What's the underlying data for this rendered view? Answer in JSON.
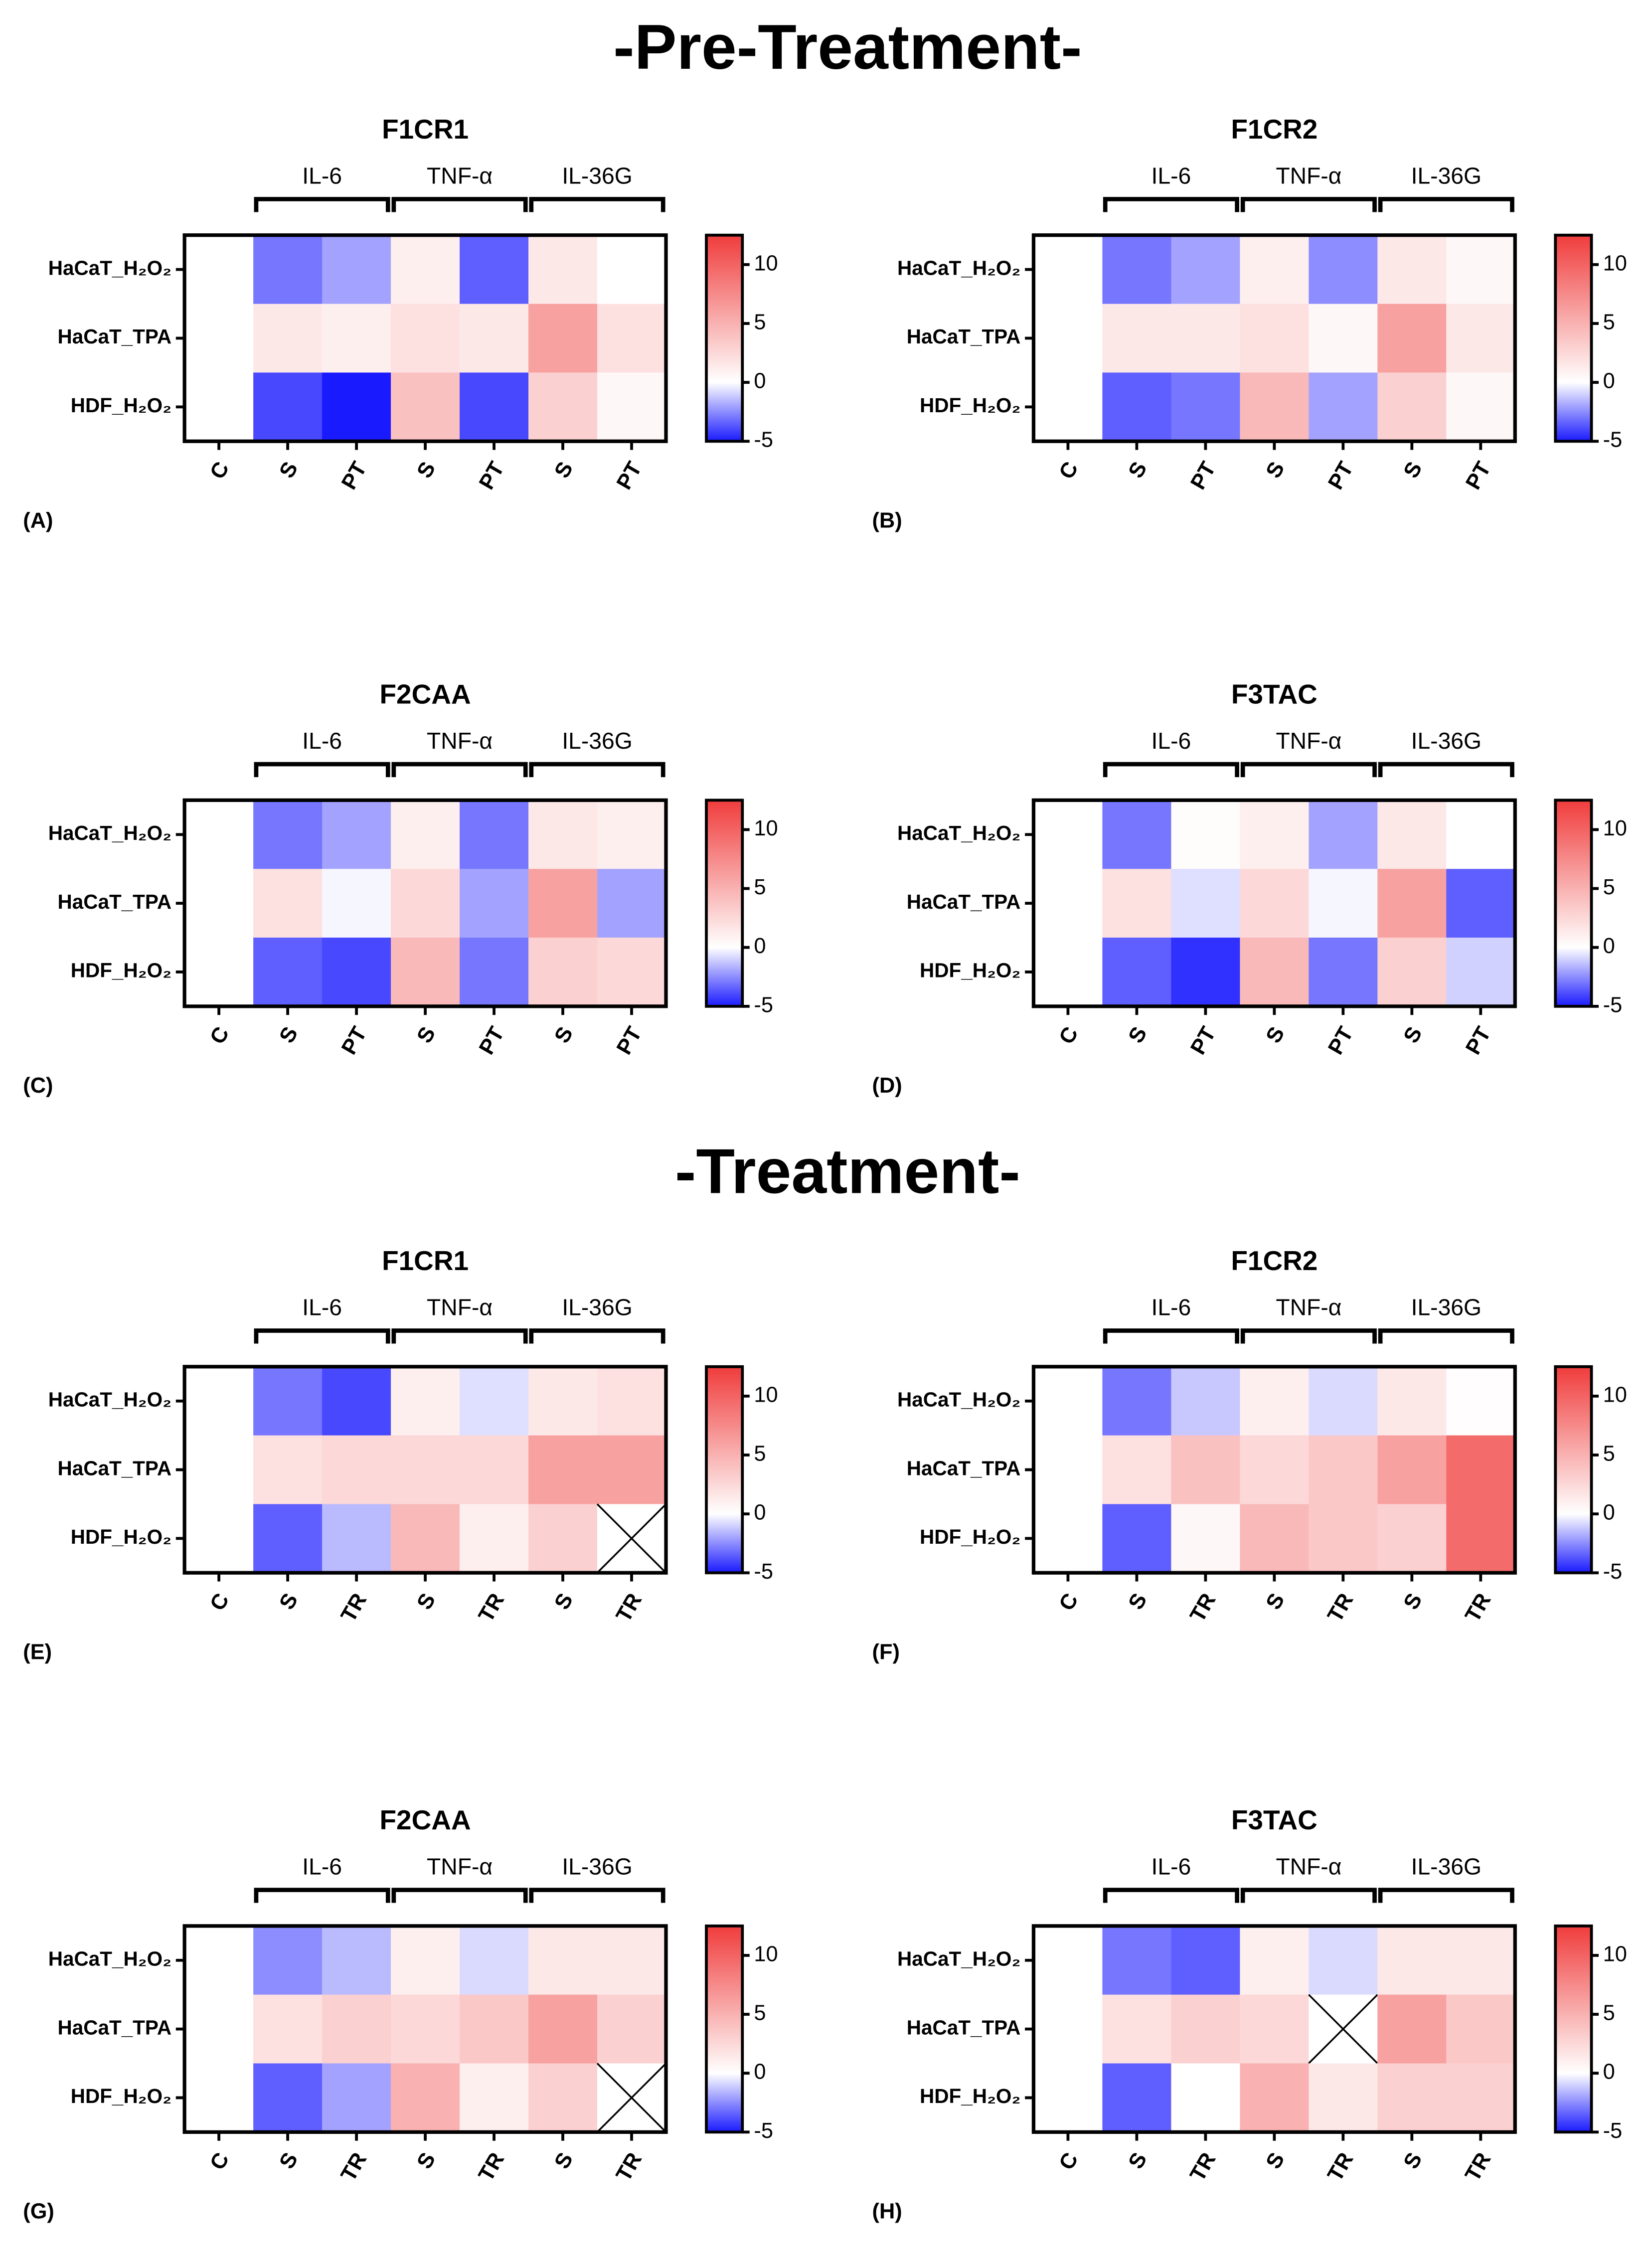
{
  "section_titles": [
    "-Pre-Treatment-",
    "-Treatment-"
  ],
  "chart_data": [
    {
      "type": "heatmap",
      "title": "F1CR1",
      "panel_label": "(A)",
      "groups": [
        "IL-6",
        "TNF-α",
        "IL-36G"
      ],
      "x": [
        "C",
        "S",
        "PT",
        "S",
        "PT",
        "S",
        "PT"
      ],
      "y": [
        "HaCaT_H₂O₂",
        "HaCaT_TPA",
        "HDF_H₂O₂"
      ],
      "values": [
        [
          0,
          -3,
          -2,
          1,
          -3.5,
          1.5,
          0
        ],
        [
          0,
          1.5,
          1,
          2,
          1.5,
          6,
          2
        ],
        [
          0,
          -4,
          -5,
          4,
          -4,
          3,
          0.5
        ]
      ],
      "zlim": [
        -5,
        12.5
      ],
      "zticks": [
        -5,
        0,
        5,
        10
      ],
      "colormap": [
        "#1a1aff",
        "#ffffff",
        "#f03c3c"
      ]
    },
    {
      "type": "heatmap",
      "title": "F1CR2",
      "panel_label": "(B)",
      "groups": [
        "IL-6",
        "TNF-α",
        "IL-36G"
      ],
      "x": [
        "C",
        "S",
        "PT",
        "S",
        "PT",
        "S",
        "PT"
      ],
      "y": [
        "HaCaT_H₂O₂",
        "HaCaT_TPA",
        "HDF_H₂O₂"
      ],
      "values": [
        [
          0,
          -3,
          -2,
          1,
          -2.5,
          1.5,
          0.5
        ],
        [
          0,
          1.5,
          1.5,
          2,
          0.5,
          6,
          1.5
        ],
        [
          0,
          -3.5,
          -3,
          4.5,
          -2,
          3,
          0.5
        ]
      ],
      "zlim": [
        -5,
        12.5
      ],
      "zticks": [
        -5,
        0,
        5,
        10
      ],
      "colormap": [
        "#1a1aff",
        "#ffffff",
        "#f03c3c"
      ]
    },
    {
      "type": "heatmap",
      "title": "F2CAA",
      "panel_label": "(C)",
      "groups": [
        "IL-6",
        "TNF-α",
        "IL-36G"
      ],
      "x": [
        "C",
        "S",
        "PT",
        "S",
        "PT",
        "S",
        "PT"
      ],
      "y": [
        "HaCaT_H₂O₂",
        "HaCaT_TPA",
        "HDF_H₂O₂"
      ],
      "values": [
        [
          0,
          -3,
          -2,
          1,
          -3,
          1.5,
          1
        ],
        [
          0,
          2,
          -0.2,
          2.5,
          -2,
          6,
          -2
        ],
        [
          0,
          -3.5,
          -4,
          4.5,
          -3,
          3,
          2.5
        ]
      ],
      "zlim": [
        -5,
        12.5
      ],
      "zticks": [
        -5,
        0,
        5,
        10
      ],
      "colormap": [
        "#1a1aff",
        "#ffffff",
        "#f03c3c"
      ]
    },
    {
      "type": "heatmap",
      "title": "F3TAC",
      "panel_label": "(D)",
      "groups": [
        "IL-6",
        "TNF-α",
        "IL-36G"
      ],
      "x": [
        "C",
        "S",
        "PT",
        "S",
        "PT",
        "S",
        "PT"
      ],
      "y": [
        "HaCaT_H₂O₂",
        "HaCaT_TPA",
        "HDF_H₂O₂"
      ],
      "values": [
        [
          0,
          -3,
          0.2,
          1,
          -2,
          1.5,
          0
        ],
        [
          0,
          2,
          -0.7,
          2.5,
          -0.2,
          6,
          -3.5
        ],
        [
          0,
          -3.5,
          -4.5,
          4.5,
          -3,
          3,
          -1
        ]
      ],
      "zlim": [
        -5,
        12.5
      ],
      "zticks": [
        -5,
        0,
        5,
        10
      ],
      "colormap": [
        "#1a1aff",
        "#ffffff",
        "#f03c3c"
      ]
    },
    {
      "type": "heatmap",
      "title": "F1CR1",
      "panel_label": "(E)",
      "groups": [
        "IL-6",
        "TNF-α",
        "IL-36G"
      ],
      "x": [
        "C",
        "S",
        "TR",
        "S",
        "TR",
        "S",
        "TR"
      ],
      "y": [
        "HaCaT_H₂O₂",
        "HaCaT_TPA",
        "HDF_H₂O₂"
      ],
      "values": [
        [
          0,
          -3,
          -4,
          1,
          -0.7,
          1.5,
          2
        ],
        [
          0,
          2,
          2.5,
          2.5,
          2.5,
          6,
          6
        ],
        [
          0,
          -3.5,
          -1.5,
          4.5,
          1,
          3,
          null
        ]
      ],
      "zlim": [
        -5,
        12.5
      ],
      "zticks": [
        -5,
        0,
        5,
        10
      ],
      "colormap": [
        "#1a1aff",
        "#ffffff",
        "#f03c3c"
      ]
    },
    {
      "type": "heatmap",
      "title": "F1CR2",
      "panel_label": "(F)",
      "groups": [
        "IL-6",
        "TNF-α",
        "IL-36G"
      ],
      "x": [
        "C",
        "S",
        "TR",
        "S",
        "TR",
        "S",
        "TR"
      ],
      "y": [
        "HaCaT_H₂O₂",
        "HaCaT_TPA",
        "HDF_H₂O₂"
      ],
      "values": [
        [
          0,
          -3,
          -1.2,
          1,
          -0.8,
          1.5,
          0.1
        ],
        [
          0,
          2,
          4,
          2.5,
          3.5,
          6,
          9.5
        ],
        [
          0,
          -3.5,
          0.5,
          4.5,
          3.5,
          3,
          9.5
        ]
      ],
      "zlim": [
        -5,
        12.5
      ],
      "zticks": [
        -5,
        0,
        5,
        10
      ],
      "colormap": [
        "#1a1aff",
        "#ffffff",
        "#f03c3c"
      ]
    },
    {
      "type": "heatmap",
      "title": "F2CAA",
      "panel_label": "(G)",
      "groups": [
        "IL-6",
        "TNF-α",
        "IL-36G"
      ],
      "x": [
        "C",
        "S",
        "TR",
        "S",
        "TR",
        "S",
        "TR"
      ],
      "y": [
        "HaCaT_H₂O₂",
        "HaCaT_TPA",
        "HDF_H₂O₂"
      ],
      "values": [
        [
          0,
          -2.5,
          -1.5,
          1,
          -0.8,
          1.5,
          1.5
        ],
        [
          0,
          2,
          3,
          2.5,
          3.5,
          6,
          3
        ],
        [
          0,
          -3.5,
          -2,
          5,
          1,
          3,
          null
        ]
      ],
      "zlim": [
        -5,
        12.5
      ],
      "zticks": [
        -5,
        0,
        5,
        10
      ],
      "colormap": [
        "#1a1aff",
        "#ffffff",
        "#f03c3c"
      ]
    },
    {
      "type": "heatmap",
      "title": "F3TAC",
      "panel_label": "(H)",
      "groups": [
        "IL-6",
        "TNF-α",
        "IL-36G"
      ],
      "x": [
        "C",
        "S",
        "TR",
        "S",
        "TR",
        "S",
        "TR"
      ],
      "y": [
        "HaCaT_H₂O₂",
        "HaCaT_TPA",
        "HDF_H₂O₂"
      ],
      "values": [
        [
          0,
          -3,
          -3.5,
          1,
          -0.8,
          1.5,
          1.5
        ],
        [
          0,
          2,
          3,
          2.5,
          null,
          6,
          3.5
        ],
        [
          0,
          -3.5,
          0,
          5,
          1.5,
          3,
          3
        ]
      ],
      "zlim": [
        -5,
        12.5
      ],
      "zticks": [
        -5,
        0,
        5,
        10
      ],
      "colormap": [
        "#1a1aff",
        "#ffffff",
        "#f03c3c"
      ]
    }
  ]
}
